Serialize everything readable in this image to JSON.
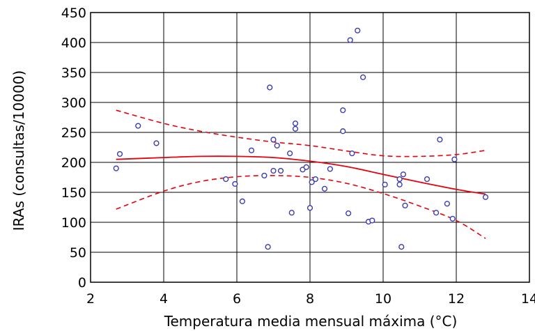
{
  "chart_data": {
    "type": "scatter",
    "title": "",
    "xlabel": "Temperatura media mensual máxima (°C)",
    "ylabel": "IRAs (consultas/10000)",
    "xlim": [
      2,
      14
    ],
    "ylim": [
      0,
      450
    ],
    "xticks": [
      "2",
      "4",
      "6",
      "8",
      "10",
      "12",
      "14"
    ],
    "yticks": [
      "0",
      "50",
      "100",
      "150",
      "200",
      "250",
      "300",
      "350",
      "400",
      "450"
    ],
    "grid": true,
    "legend": "none",
    "colors": {
      "points": "#3b3bb3",
      "fit": "#e8000b",
      "grid": "#000000"
    },
    "points": [
      [
        2.7,
        190
      ],
      [
        2.8,
        214
      ],
      [
        3.3,
        261
      ],
      [
        3.8,
        232
      ],
      [
        5.7,
        172
      ],
      [
        5.95,
        164
      ],
      [
        6.15,
        135
      ],
      [
        6.4,
        220
      ],
      [
        6.75,
        178
      ],
      [
        6.85,
        59
      ],
      [
        6.9,
        325
      ],
      [
        7.0,
        238
      ],
      [
        7.0,
        186
      ],
      [
        7.1,
        228
      ],
      [
        7.2,
        186
      ],
      [
        7.45,
        215
      ],
      [
        7.5,
        116
      ],
      [
        7.6,
        265
      ],
      [
        7.6,
        256
      ],
      [
        7.8,
        188
      ],
      [
        7.9,
        192
      ],
      [
        8.0,
        124
      ],
      [
        8.05,
        167
      ],
      [
        8.15,
        172
      ],
      [
        8.4,
        156
      ],
      [
        8.55,
        189
      ],
      [
        8.9,
        287
      ],
      [
        8.9,
        252
      ],
      [
        9.05,
        115
      ],
      [
        9.1,
        404
      ],
      [
        9.15,
        215
      ],
      [
        9.3,
        420
      ],
      [
        9.45,
        342
      ],
      [
        9.6,
        101
      ],
      [
        9.7,
        103
      ],
      [
        10.05,
        163
      ],
      [
        10.45,
        172
      ],
      [
        10.45,
        163
      ],
      [
        10.5,
        59
      ],
      [
        10.55,
        180
      ],
      [
        10.6,
        128
      ],
      [
        11.2,
        172
      ],
      [
        11.45,
        116
      ],
      [
        11.55,
        238
      ],
      [
        11.75,
        131
      ],
      [
        11.9,
        106
      ],
      [
        11.95,
        205
      ],
      [
        12.8,
        142
      ]
    ],
    "fit": {
      "name": "",
      "x": [
        2.7,
        4,
        5,
        6,
        7,
        8,
        9,
        10,
        11,
        12,
        12.8
      ],
      "y": [
        205,
        208,
        210,
        210,
        208,
        202,
        193,
        180,
        167,
        155,
        147
      ]
    },
    "ci_upper": {
      "x": [
        2.7,
        4,
        5,
        6,
        7,
        8,
        9,
        10,
        11,
        12,
        12.8
      ],
      "y": [
        287,
        265,
        252,
        242,
        234,
        228,
        219,
        211,
        210,
        213,
        220
      ]
    },
    "ci_lower": {
      "x": [
        2.7,
        4,
        5,
        6,
        7,
        8,
        9,
        10,
        11,
        12,
        12.8
      ],
      "y": [
        122,
        152,
        168,
        176,
        178,
        175,
        165,
        148,
        127,
        103,
        73
      ]
    }
  }
}
